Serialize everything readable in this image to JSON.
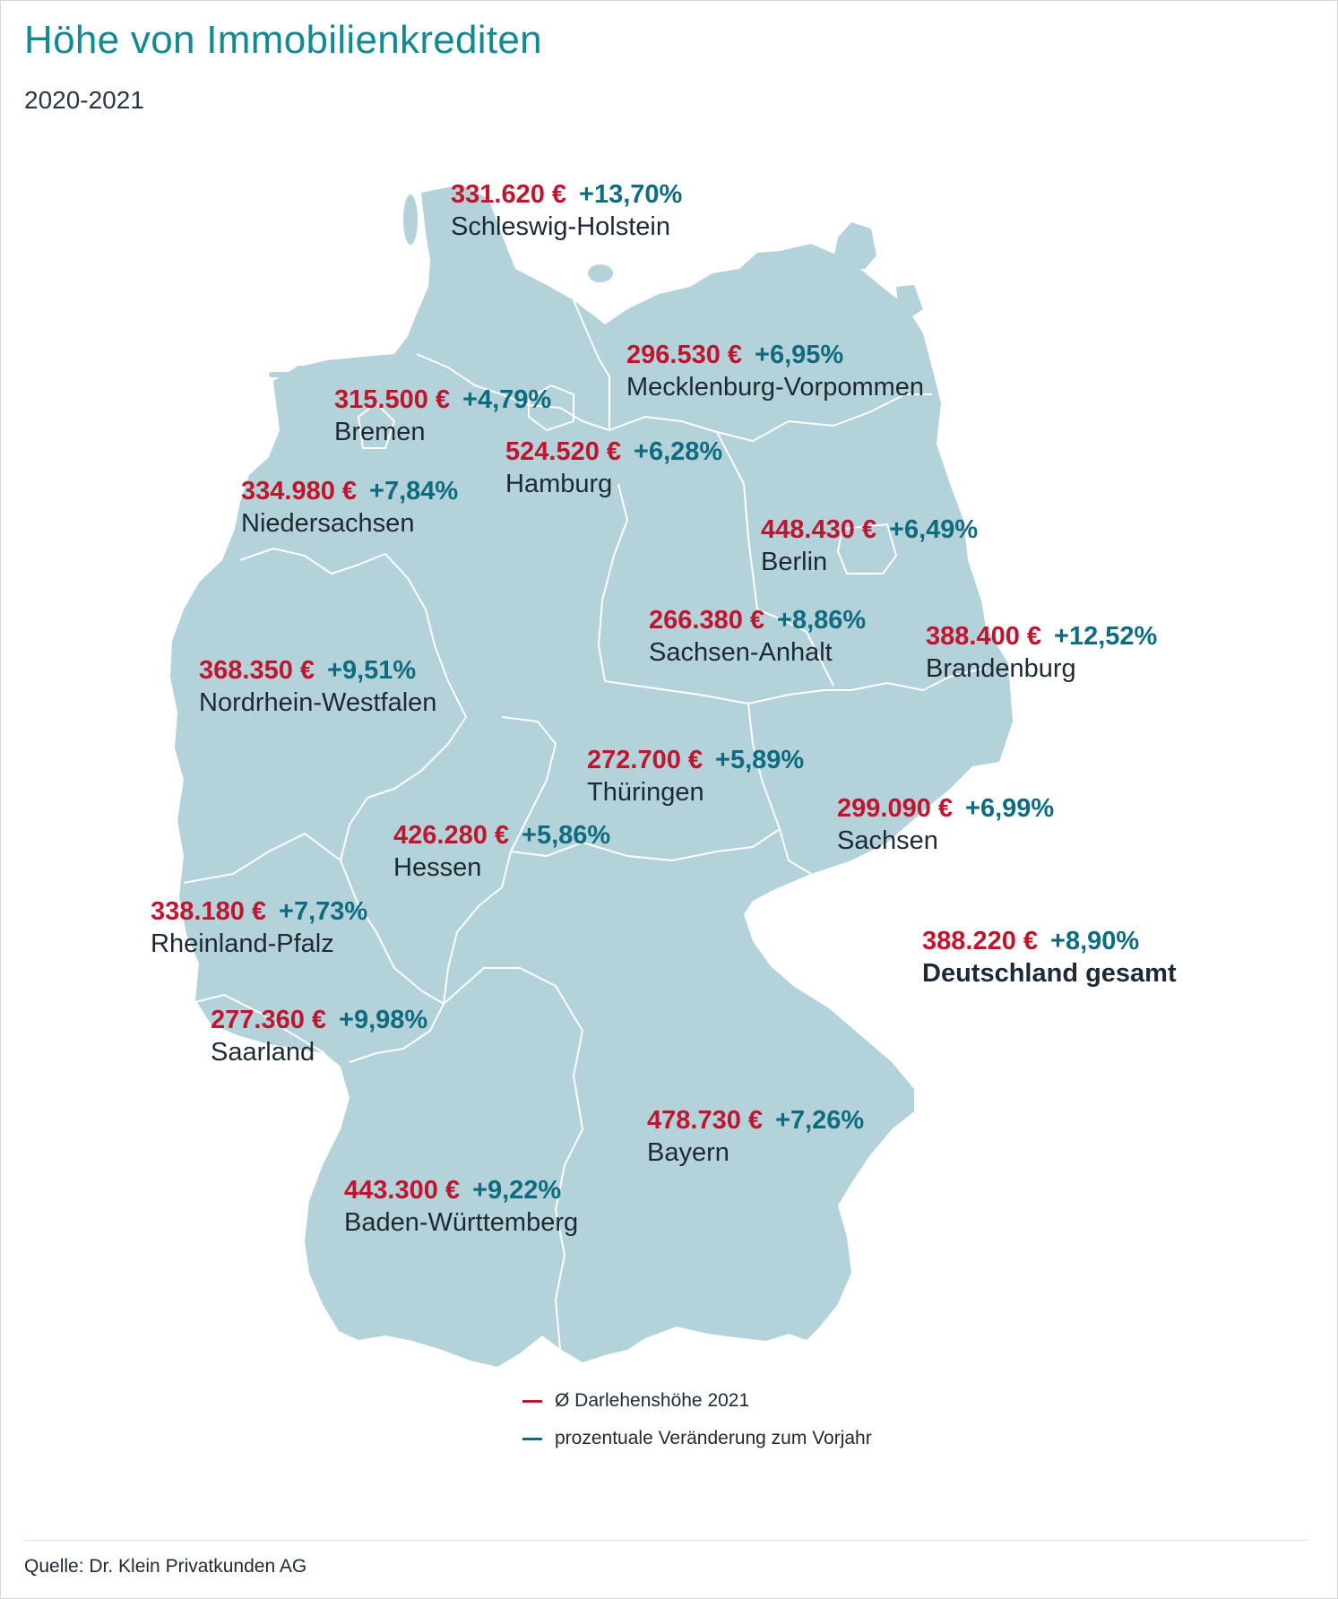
{
  "title": "Höhe von Immobilienkrediten",
  "subtitle": "2020-2021",
  "colors": {
    "map_fill": "#b3d2d9",
    "border": "#ffffff",
    "value": "#c0142f",
    "change": "#0f6b80",
    "title": "#14898f"
  },
  "regions": [
    {
      "id": "sh",
      "name": "Schleswig-Holstein",
      "value": "331.620 €",
      "change": "+13,70%"
    },
    {
      "id": "mv",
      "name": "Mecklenburg-Vorpommen",
      "value": "296.530 €",
      "change": "+6,95%"
    },
    {
      "id": "hb",
      "name": "Bremen",
      "value": "315.500 €",
      "change": "+4,79%"
    },
    {
      "id": "hh",
      "name": "Hamburg",
      "value": "524.520 €",
      "change": "+6,28%"
    },
    {
      "id": "ni",
      "name": "Niedersachsen",
      "value": "334.980 €",
      "change": "+7,84%"
    },
    {
      "id": "be",
      "name": "Berlin",
      "value": "448.430 €",
      "change": "+6,49%"
    },
    {
      "id": "st",
      "name": "Sachsen-Anhalt",
      "value": "266.380 €",
      "change": "+8,86%"
    },
    {
      "id": "bb",
      "name": "Brandenburg",
      "value": "388.400 €",
      "change": "+12,52%"
    },
    {
      "id": "nw",
      "name": "Nordrhein-Westfalen",
      "value": "368.350 €",
      "change": "+9,51%"
    },
    {
      "id": "th",
      "name": "Thüringen",
      "value": "272.700 €",
      "change": "+5,89%"
    },
    {
      "id": "sn",
      "name": "Sachsen",
      "value": "299.090 €",
      "change": "+6,99%"
    },
    {
      "id": "he",
      "name": "Hessen",
      "value": "426.280 €",
      "change": "+5,86%"
    },
    {
      "id": "rp",
      "name": "Rheinland-Pfalz",
      "value": "338.180 €",
      "change": "+7,73%"
    },
    {
      "id": "de",
      "name": "Deutschland gesamt",
      "value": "388.220 €",
      "change": "+8,90%"
    },
    {
      "id": "sl",
      "name": "Saarland",
      "value": "277.360 €",
      "change": "+9,98%"
    },
    {
      "id": "by",
      "name": "Bayern",
      "value": "478.730 €",
      "change": "+7,26%"
    },
    {
      "id": "bw",
      "name": "Baden-Württemberg",
      "value": "443.300 €",
      "change": "+9,22%"
    }
  ],
  "legend": [
    {
      "label": "Ø Darlehenshöhe 2021",
      "color": "#c0142f"
    },
    {
      "label": "prozentuale Veränderung zum Vorjahr",
      "color": "#0f6b80"
    }
  ],
  "source": "Quelle: Dr. Klein Privatkunden AG"
}
